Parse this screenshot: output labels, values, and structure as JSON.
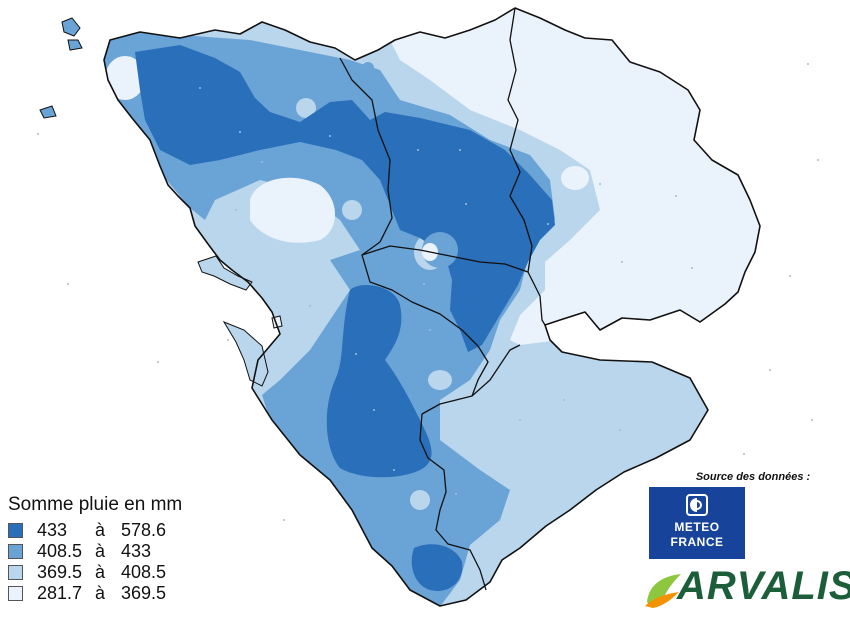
{
  "legend": {
    "title": "Somme pluie en mm",
    "classes": [
      {
        "min": "433",
        "sep": "à",
        "max": "578.6",
        "color": "#2a6fb9"
      },
      {
        "min": "408.5",
        "sep": "à",
        "max": "433",
        "color": "#6aa3d6"
      },
      {
        "min": "369.5",
        "sep": "à",
        "max": "408.5",
        "color": "#b9d6ec"
      },
      {
        "min": "281.7",
        "sep": "à",
        "max": "369.5",
        "color": "#eaf2fb"
      }
    ]
  },
  "source": {
    "label": "Source des données :",
    "meteo_line1": "METEO",
    "meteo_line2": "FRANCE",
    "arvalis": "ARVALIS"
  },
  "colors": {
    "boundary": "#111111",
    "meteo_blue": "#17439a",
    "arvalis_green": "#1d5e3a",
    "arvalis_leaf": "#8dc63f",
    "arvalis_orange": "#f39200"
  }
}
